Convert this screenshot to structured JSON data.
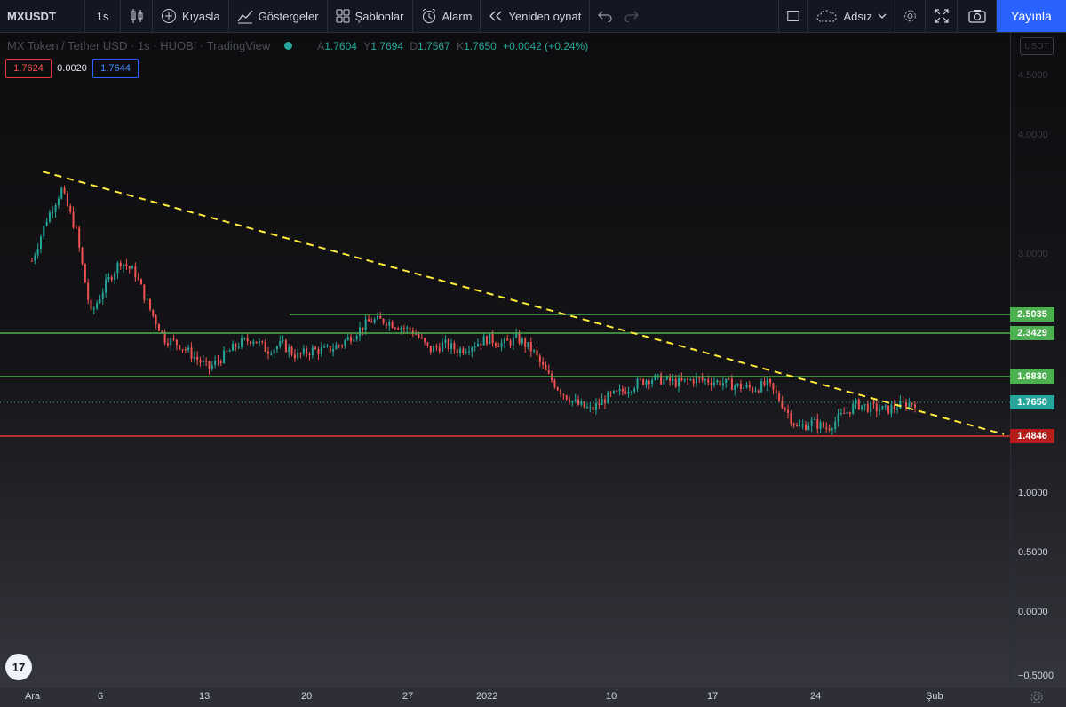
{
  "toolbar": {
    "symbol": "MXUSDT",
    "interval": "1s",
    "compare": "Kıyasla",
    "indicators": "Göstergeler",
    "templates": "Şablonlar",
    "alert": "Alarm",
    "replay": "Yeniden oynat",
    "layout_name": "Adsız",
    "publish": "Yayınla"
  },
  "legend": {
    "title": "MX Token / Tether USD · 1s · HUOBI · TradingView",
    "open_label": "A",
    "open": "1.7604",
    "high_label": "Y",
    "high": "1.7694",
    "low_label": "D",
    "low": "1.7567",
    "close_label": "K",
    "close": "1.7650",
    "change": "+0.0042 (+0.24%)"
  },
  "prices": {
    "bid": "1.7624",
    "spread": "0.0020",
    "ask": "1.7644"
  },
  "currency": "USDT",
  "logo_text": "17",
  "colors": {
    "up": "#26a69a",
    "down": "#ef5350",
    "support_line": "#4caf50",
    "resistance_line": "#e53935",
    "trendline": "#ffeb3b",
    "accent": "#2962ff"
  },
  "chart_data": {
    "type": "candlestick",
    "title": "MX Token / Tether USD · 1s · HUOBI",
    "ylim": [
      -0.6,
      5.0
    ],
    "y_ticks": [
      "4.5000",
      "4.0000",
      "3.0000",
      "1.0000",
      "0.5000",
      "0.0000",
      "−0.5000"
    ],
    "x_ticks": [
      "Ara",
      "6",
      "13",
      "20",
      "27",
      "2022",
      "10",
      "17",
      "24",
      "Şub"
    ],
    "close_series": [
      {
        "date": "Ara 1",
        "v": 2.95
      },
      {
        "date": "Ara 2",
        "v": 3.3
      },
      {
        "date": "Ara 3",
        "v": 3.55
      },
      {
        "date": "Ara 4",
        "v": 3.2
      },
      {
        "date": "Ara 5",
        "v": 2.5
      },
      {
        "date": "Ara 6",
        "v": 2.75
      },
      {
        "date": "Ara 7",
        "v": 2.95
      },
      {
        "date": "Ara 8",
        "v": 2.85
      },
      {
        "date": "Ara 9",
        "v": 2.55
      },
      {
        "date": "Ara 10",
        "v": 2.3
      },
      {
        "date": "Ara 11",
        "v": 2.25
      },
      {
        "date": "Ara 12",
        "v": 2.15
      },
      {
        "date": "Ara 13",
        "v": 2.05
      },
      {
        "date": "Ara 14",
        "v": 2.15
      },
      {
        "date": "Ara 15",
        "v": 2.25
      },
      {
        "date": "Ara 16",
        "v": 2.3
      },
      {
        "date": "Ara 17",
        "v": 2.2
      },
      {
        "date": "Ara 18",
        "v": 2.25
      },
      {
        "date": "Ara 19",
        "v": 2.15
      },
      {
        "date": "Ara 20",
        "v": 2.2
      },
      {
        "date": "Ara 21",
        "v": 2.2
      },
      {
        "date": "Ara 22",
        "v": 2.25
      },
      {
        "date": "Ara 23",
        "v": 2.35
      },
      {
        "date": "Ara 24",
        "v": 2.45
      },
      {
        "date": "Ara 25",
        "v": 2.45
      },
      {
        "date": "Ara 26",
        "v": 2.4
      },
      {
        "date": "Ara 27",
        "v": 2.35
      },
      {
        "date": "Ara 28",
        "v": 2.2
      },
      {
        "date": "Ara 29",
        "v": 2.25
      },
      {
        "date": "Ara 30",
        "v": 2.2
      },
      {
        "date": "Ara 31",
        "v": 2.25
      },
      {
        "date": "Oca 1",
        "v": 2.3
      },
      {
        "date": "Oca 2",
        "v": 2.25
      },
      {
        "date": "Oca 3",
        "v": 2.3
      },
      {
        "date": "Oca 4",
        "v": 2.2
      },
      {
        "date": "Oca 5",
        "v": 2.0
      },
      {
        "date": "Oca 6",
        "v": 1.85
      },
      {
        "date": "Oca 7",
        "v": 1.75
      },
      {
        "date": "Oca 8",
        "v": 1.7
      },
      {
        "date": "Oca 9",
        "v": 1.8
      },
      {
        "date": "Oca 10",
        "v": 1.85
      },
      {
        "date": "Oca 11",
        "v": 1.92
      },
      {
        "date": "Oca 12",
        "v": 1.97
      },
      {
        "date": "Oca 13",
        "v": 1.95
      },
      {
        "date": "Oca 14",
        "v": 1.93
      },
      {
        "date": "Oca 15",
        "v": 1.96
      },
      {
        "date": "Oca 16",
        "v": 1.95
      },
      {
        "date": "Oca 17",
        "v": 1.93
      },
      {
        "date": "Oca 18",
        "v": 1.9
      },
      {
        "date": "Oca 19",
        "v": 1.88
      },
      {
        "date": "Oca 20",
        "v": 1.92
      },
      {
        "date": "Oca 21",
        "v": 1.75
      },
      {
        "date": "Oca 22",
        "v": 1.55
      },
      {
        "date": "Oca 23",
        "v": 1.6
      },
      {
        "date": "Oca 24",
        "v": 1.55
      },
      {
        "date": "Oca 25",
        "v": 1.65
      },
      {
        "date": "Oca 26",
        "v": 1.75
      },
      {
        "date": "Oca 27",
        "v": 1.72
      },
      {
        "date": "Oca 28",
        "v": 1.7
      },
      {
        "date": "Oca 29",
        "v": 1.74
      },
      {
        "date": "Oca 30",
        "v": 1.765
      }
    ],
    "horizontal_levels": [
      {
        "label": "2.5035",
        "value": 2.5035,
        "kind": "support",
        "start_date": "Ara 18"
      },
      {
        "label": "2.3429",
        "value": 2.3429,
        "kind": "support",
        "start_date": "Ara 1"
      },
      {
        "label": "1.9830",
        "value": 1.983,
        "kind": "support",
        "start_date": "Ara 1"
      },
      {
        "label": "1.7650",
        "value": 1.765,
        "kind": "last_price",
        "start_date": "Ara 1"
      },
      {
        "label": "1.4846",
        "value": 1.4846,
        "kind": "resistance",
        "start_date": "Ara 1"
      }
    ],
    "trendline": {
      "start": {
        "date": "Ara 3",
        "v": 3.7
      },
      "end": {
        "date": "Şub 2",
        "v": 1.5
      }
    },
    "grid": false
  }
}
